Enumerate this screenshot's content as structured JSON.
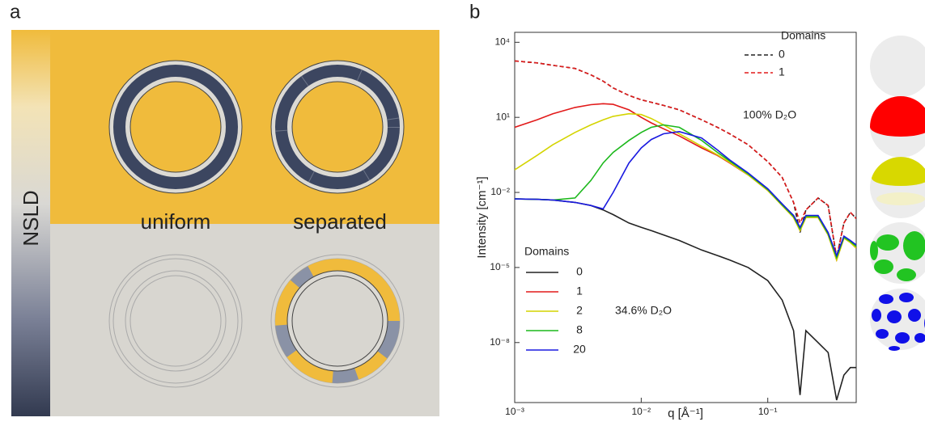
{
  "panel_a": {
    "label": "a",
    "bar_label": "NSLD",
    "ring_labels": [
      "uniform",
      "separated"
    ]
  },
  "panel_b": {
    "label": "b"
  },
  "chart_data": {
    "type": "line",
    "xlabel": "q [Å⁻¹]",
    "ylabel": "Intensity [cm⁻¹]",
    "xscale": "log",
    "yscale": "log",
    "xlim": [
      0.001,
      0.5
    ],
    "ylim": [
      4e-11,
      25000
    ],
    "xticks": [
      {
        "value": 0.001,
        "label": "10⁻³"
      },
      {
        "value": 0.01,
        "label": "10⁻²"
      },
      {
        "value": 0.1,
        "label": "10⁻¹"
      }
    ],
    "yticks": [
      {
        "value": 10000,
        "label": "10⁴"
      },
      {
        "value": 10,
        "label": "10¹"
      },
      {
        "value": 0.01,
        "label": "10⁻²"
      },
      {
        "value": 1e-05,
        "label": "10⁻⁵"
      },
      {
        "value": 1e-08,
        "label": "10⁻⁸"
      }
    ],
    "annotations": [
      "100% D₂O",
      "34.6% D₂O"
    ],
    "legends": [
      {
        "title": "Domains",
        "position": "upper right"
      },
      {
        "title": "Domains",
        "position": "lower left"
      }
    ],
    "x": [
      0.001,
      0.0015,
      0.002,
      0.003,
      0.004,
      0.005,
      0.006,
      0.008,
      0.01,
      0.012,
      0.015,
      0.02,
      0.03,
      0.04,
      0.05,
      0.07,
      0.1,
      0.13,
      0.16,
      0.18,
      0.2,
      0.25,
      0.3,
      0.35,
      0.4,
      0.45,
      0.5
    ],
    "series": [
      {
        "name": "0",
        "color": "#222222",
        "linestyle": "dashed",
        "legend": 0,
        "values": [
          1800,
          1500,
          1200,
          900,
          500,
          280,
          150,
          75,
          50,
          40,
          30,
          20,
          8,
          4,
          2.2,
          0.8,
          0.17,
          0.04,
          0.004,
          0.00025,
          0.002,
          0.006,
          0.003,
          2.5e-05,
          0.0006,
          0.0016,
          0.0009
        ]
      },
      {
        "name": "1",
        "color": "#e21a1a",
        "linestyle": "dashed",
        "legend": 0,
        "values": [
          1800,
          1500,
          1200,
          900,
          500,
          280,
          150,
          75,
          50,
          40,
          30,
          20,
          8,
          4,
          2.2,
          0.8,
          0.17,
          0.04,
          0.004,
          0.0006,
          0.002,
          0.006,
          0.003,
          2.5e-05,
          0.0006,
          0.0016,
          0.0009
        ]
      },
      {
        "name": "0",
        "color": "#222222",
        "linestyle": "solid",
        "legend": 1,
        "values": [
          0.0055,
          0.0053,
          0.005,
          0.004,
          0.003,
          0.002,
          0.0013,
          0.0006,
          0.0004,
          0.0003,
          0.0002,
          0.00012,
          5e-05,
          3e-05,
          2e-05,
          1e-05,
          3e-06,
          5e-07,
          3e-08,
          8e-11,
          3e-08,
          1e-08,
          4e-09,
          5e-11,
          5e-10,
          1e-09,
          1e-09
        ]
      },
      {
        "name": "1",
        "color": "#e21a1a",
        "linestyle": "solid",
        "legend": 1,
        "values": [
          4,
          8,
          14,
          25,
          32,
          35,
          33,
          20,
          10,
          6,
          3.5,
          1.8,
          0.6,
          0.3,
          0.15,
          0.05,
          0.012,
          0.003,
          0.001,
          0.0003,
          0.001,
          0.001,
          0.0002,
          2e-05,
          0.00015,
          0.0001,
          6e-05
        ]
      },
      {
        "name": "2",
        "color": "#d4d400",
        "linestyle": "solid",
        "legend": 1,
        "values": [
          0.08,
          0.3,
          0.8,
          2.5,
          5,
          8,
          11,
          14,
          13,
          9,
          5,
          2.2,
          0.7,
          0.32,
          0.16,
          0.05,
          0.012,
          0.003,
          0.001,
          0.0003,
          0.001,
          0.001,
          0.0002,
          2e-05,
          0.00015,
          0.0001,
          6e-05
        ]
      },
      {
        "name": "8",
        "color": "#1cb81c",
        "linestyle": "solid",
        "legend": 1,
        "values": [
          0.0055,
          0.0053,
          0.005,
          0.006,
          0.03,
          0.15,
          0.4,
          1.2,
          2.5,
          4,
          5,
          4,
          1.2,
          0.4,
          0.18,
          0.055,
          0.013,
          0.0032,
          0.0011,
          0.00035,
          0.0011,
          0.0011,
          0.00022,
          2.5e-05,
          0.00016,
          0.00011,
          7e-05
        ]
      },
      {
        "name": "20",
        "color": "#1a1ae0",
        "linestyle": "solid",
        "legend": 1,
        "values": [
          0.0055,
          0.0053,
          0.005,
          0.004,
          0.003,
          0.0022,
          0.01,
          0.15,
          0.6,
          1.3,
          2.2,
          2.7,
          1.5,
          0.5,
          0.2,
          0.06,
          0.014,
          0.0035,
          0.0012,
          0.0004,
          0.0012,
          0.0012,
          0.00025,
          3e-05,
          0.00018,
          0.00012,
          8e-05
        ]
      }
    ]
  }
}
